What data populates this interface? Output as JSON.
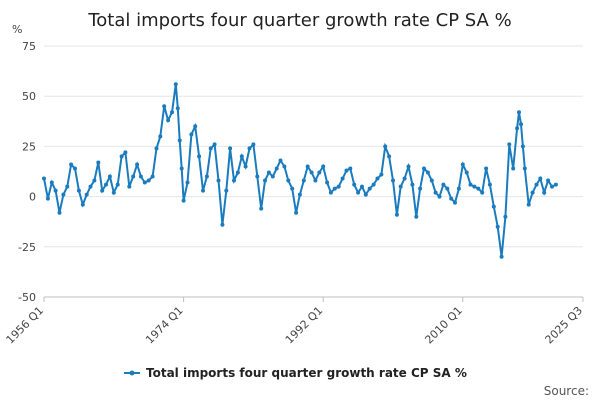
{
  "chart_data": {
    "type": "line",
    "title": "Total imports four quarter growth rate CP SA %",
    "ylabel": "%",
    "ylim": [
      -50,
      75
    ],
    "yticks": [
      75,
      50,
      25,
      0,
      -25,
      -50
    ],
    "xlim": [
      1956,
      2025.5
    ],
    "xticks": [
      {
        "value": 1956,
        "label": "1956 Q1"
      },
      {
        "value": 1974,
        "label": "1974 Q1"
      },
      {
        "value": 1992,
        "label": "1992 Q1"
      },
      {
        "value": 2010,
        "label": "2010 Q1"
      },
      {
        "value": 2025.5,
        "label": "2025 Q3"
      }
    ],
    "series": [
      {
        "name": "Total imports four quarter growth rate CP SA %",
        "color": "#1a7cbf",
        "points": [
          [
            1956.0,
            9
          ],
          [
            1956.5,
            -1
          ],
          [
            1957.0,
            7
          ],
          [
            1957.5,
            3
          ],
          [
            1958.0,
            -8
          ],
          [
            1958.5,
            1
          ],
          [
            1959.0,
            5
          ],
          [
            1959.5,
            16
          ],
          [
            1960.0,
            14
          ],
          [
            1960.5,
            3
          ],
          [
            1961.0,
            -4
          ],
          [
            1961.5,
            1
          ],
          [
            1962.0,
            5
          ],
          [
            1962.5,
            8
          ],
          [
            1963.0,
            17
          ],
          [
            1963.5,
            3
          ],
          [
            1964.0,
            6
          ],
          [
            1964.5,
            10
          ],
          [
            1965.0,
            2
          ],
          [
            1965.5,
            6
          ],
          [
            1966.0,
            20
          ],
          [
            1966.5,
            22
          ],
          [
            1967.0,
            5
          ],
          [
            1967.5,
            10
          ],
          [
            1968.0,
            16
          ],
          [
            1968.5,
            10
          ],
          [
            1969.0,
            7
          ],
          [
            1969.5,
            8
          ],
          [
            1970.0,
            10
          ],
          [
            1970.5,
            24
          ],
          [
            1971.0,
            30
          ],
          [
            1971.5,
            45
          ],
          [
            1972.0,
            38
          ],
          [
            1972.5,
            42
          ],
          [
            1973.0,
            56
          ],
          [
            1973.25,
            44
          ],
          [
            1973.5,
            28
          ],
          [
            1973.75,
            14
          ],
          [
            1974.0,
            -2
          ],
          [
            1974.5,
            7
          ],
          [
            1975.0,
            31
          ],
          [
            1975.5,
            35
          ],
          [
            1976.0,
            20
          ],
          [
            1976.5,
            3
          ],
          [
            1977.0,
            10
          ],
          [
            1977.5,
            24
          ],
          [
            1978.0,
            26
          ],
          [
            1978.5,
            8
          ],
          [
            1979.0,
            -14
          ],
          [
            1979.5,
            3
          ],
          [
            1980.0,
            24
          ],
          [
            1980.5,
            8
          ],
          [
            1981.0,
            12
          ],
          [
            1981.5,
            20
          ],
          [
            1982.0,
            15
          ],
          [
            1982.5,
            24
          ],
          [
            1983.0,
            26
          ],
          [
            1983.5,
            10
          ],
          [
            1984.0,
            -6
          ],
          [
            1984.5,
            8
          ],
          [
            1985.0,
            12
          ],
          [
            1985.5,
            10
          ],
          [
            1986.0,
            14
          ],
          [
            1986.5,
            18
          ],
          [
            1987.0,
            15
          ],
          [
            1987.5,
            8
          ],
          [
            1988.0,
            4
          ],
          [
            1988.5,
            -8
          ],
          [
            1989.0,
            1
          ],
          [
            1989.5,
            8
          ],
          [
            1990.0,
            15
          ],
          [
            1990.5,
            12
          ],
          [
            1991.0,
            8
          ],
          [
            1991.5,
            12
          ],
          [
            1992.0,
            15
          ],
          [
            1992.5,
            7
          ],
          [
            1993.0,
            2
          ],
          [
            1993.5,
            4
          ],
          [
            1994.0,
            5
          ],
          [
            1994.5,
            9
          ],
          [
            1995.0,
            13
          ],
          [
            1995.5,
            14
          ],
          [
            1996.0,
            6
          ],
          [
            1996.5,
            2
          ],
          [
            1997.0,
            5
          ],
          [
            1997.5,
            1
          ],
          [
            1998.0,
            4
          ],
          [
            1998.5,
            6
          ],
          [
            1999.0,
            9
          ],
          [
            1999.5,
            11
          ],
          [
            2000.0,
            25
          ],
          [
            2000.5,
            20
          ],
          [
            2001.0,
            8
          ],
          [
            2001.5,
            -9
          ],
          [
            2002.0,
            5
          ],
          [
            2002.5,
            9
          ],
          [
            2003.0,
            15
          ],
          [
            2003.5,
            6
          ],
          [
            2004.0,
            -10
          ],
          [
            2004.5,
            4
          ],
          [
            2005.0,
            14
          ],
          [
            2005.5,
            12
          ],
          [
            2006.0,
            8
          ],
          [
            2006.5,
            2
          ],
          [
            2007.0,
            0
          ],
          [
            2007.5,
            6
          ],
          [
            2008.0,
            4
          ],
          [
            2008.5,
            -1
          ],
          [
            2009.0,
            -3
          ],
          [
            2009.5,
            4
          ],
          [
            2010.0,
            16
          ],
          [
            2010.5,
            12
          ],
          [
            2011.0,
            6
          ],
          [
            2011.5,
            5
          ],
          [
            2012.0,
            4
          ],
          [
            2012.5,
            2
          ],
          [
            2013.0,
            14
          ],
          [
            2013.5,
            6
          ],
          [
            2014.0,
            -5
          ],
          [
            2014.5,
            -15
          ],
          [
            2015.0,
            -30
          ],
          [
            2015.5,
            -10
          ],
          [
            2016.0,
            26
          ],
          [
            2016.5,
            14
          ],
          [
            2017.0,
            34
          ],
          [
            2017.25,
            42
          ],
          [
            2017.5,
            36
          ],
          [
            2017.75,
            25
          ],
          [
            2018.0,
            14
          ],
          [
            2018.5,
            -4
          ],
          [
            2019.0,
            2
          ],
          [
            2019.5,
            6
          ],
          [
            2020.0,
            9
          ],
          [
            2020.5,
            2
          ],
          [
            2021.0,
            8
          ],
          [
            2021.5,
            5
          ],
          [
            2022.0,
            6
          ]
        ]
      }
    ],
    "legend_position": "bottom-center"
  },
  "footer": {
    "source_label": "Source:"
  }
}
